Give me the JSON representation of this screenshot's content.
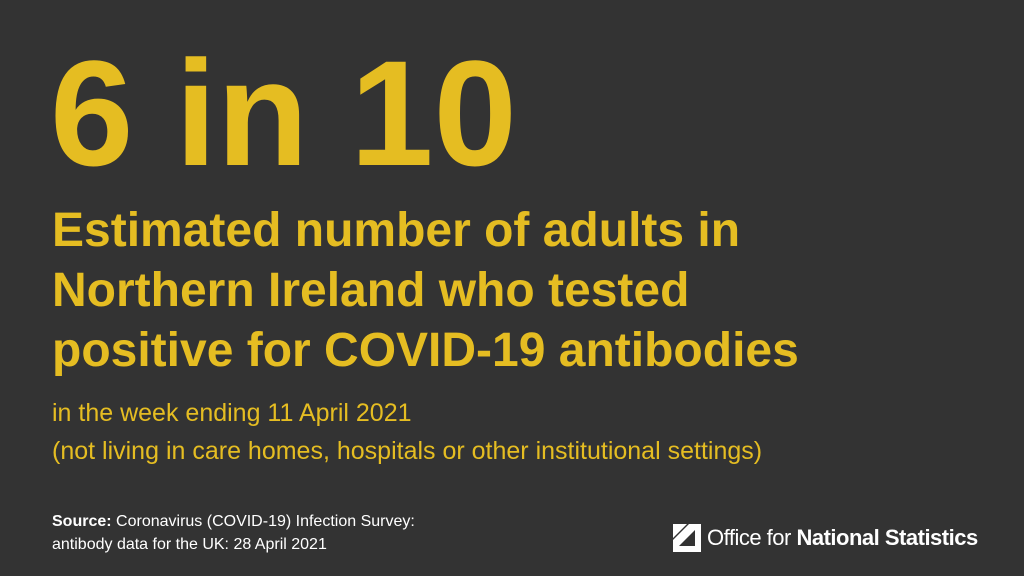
{
  "headline": "6 in 10",
  "description": [
    "Estimated number of adults in",
    "Northern Ireland who tested",
    "positive for COVID-19 antibodies"
  ],
  "subtitle": [
    "in the week ending 11 April 2021",
    "(not living in care homes, hospitals or other institutional settings)"
  ],
  "source": {
    "label": "Source:",
    "lines": [
      "Coronavirus (COVID-19) Infection Survey:",
      "antibody data for the UK: 28 April 2021"
    ]
  },
  "logo": {
    "light": "Office for",
    "bold": "National Statistics"
  }
}
